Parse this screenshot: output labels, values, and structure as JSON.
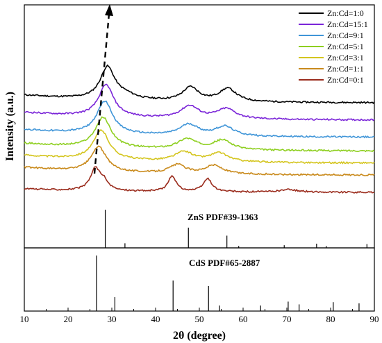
{
  "chart_data": {
    "type": "line",
    "x_label": "2θ (degree)",
    "y_label": "Intensity (a.u.)",
    "x_ticks": [
      10,
      20,
      30,
      40,
      50,
      60,
      70,
      80,
      90
    ],
    "xlim": [
      10,
      90
    ],
    "grid": false,
    "legend_position": "top-right",
    "series": [
      {
        "name": "Zn:Cd=1:0",
        "color": "#000000",
        "offset": 6.0,
        "baseline": 0.45,
        "peaks": [
          [
            29.0,
            1.85,
            2.0
          ],
          [
            48.0,
            0.8,
            2.2
          ],
          [
            56.5,
            0.75,
            2.4
          ],
          [
            33.0,
            0.25,
            3.0
          ]
        ]
      },
      {
        "name": "Zn:Cd=15:1",
        "color": "#7a24d8",
        "offset": 5.0,
        "baseline": 0.45,
        "peaks": [
          [
            28.7,
            1.85,
            2.1
          ],
          [
            47.8,
            0.72,
            2.5
          ],
          [
            56.2,
            0.58,
            2.6
          ]
        ]
      },
      {
        "name": "Zn:Cd=9:1",
        "color": "#3f95d8",
        "offset": 4.0,
        "baseline": 0.45,
        "peaks": [
          [
            28.4,
            1.9,
            2.2
          ],
          [
            47.6,
            0.65,
            2.6
          ],
          [
            55.8,
            0.55,
            2.6
          ]
        ]
      },
      {
        "name": "Zn:Cd=5:1",
        "color": "#8ecf20",
        "offset": 3.2,
        "baseline": 0.45,
        "peaks": [
          [
            28.0,
            1.75,
            2.2
          ],
          [
            47.2,
            0.6,
            2.6
          ],
          [
            55.3,
            0.55,
            2.6
          ]
        ]
      },
      {
        "name": "Zn:Cd=3:1",
        "color": "#d4c51e",
        "offset": 2.5,
        "baseline": 0.45,
        "peaks": [
          [
            27.6,
            1.7,
            2.2
          ],
          [
            46.5,
            0.55,
            2.6
          ],
          [
            54.5,
            0.5,
            2.6
          ]
        ]
      },
      {
        "name": "Zn:Cd=1:1",
        "color": "#c98a1c",
        "offset": 1.8,
        "baseline": 0.45,
        "peaks": [
          [
            27.0,
            1.45,
            2.1
          ],
          [
            45.0,
            0.5,
            2.2
          ],
          [
            53.3,
            0.5,
            2.4
          ]
        ]
      },
      {
        "name": "Zn:Cd=0:1",
        "color": "#9a2b1c",
        "offset": 0.8,
        "baseline": 0.2,
        "peaks": [
          [
            26.2,
            1.25,
            1.3
          ],
          [
            28.1,
            0.5,
            1.2
          ],
          [
            43.8,
            0.9,
            1.1
          ],
          [
            51.9,
            0.75,
            1.2
          ],
          [
            70.5,
            0.15,
            2.5
          ]
        ]
      }
    ],
    "reference_patterns": [
      {
        "label": "ZnS PDF#39-1363",
        "lines": [
          [
            28.5,
            100
          ],
          [
            33.0,
            12
          ],
          [
            47.5,
            53
          ],
          [
            56.3,
            32
          ],
          [
            59.0,
            5
          ],
          [
            69.4,
            7
          ],
          [
            76.8,
            11
          ],
          [
            79.0,
            5
          ],
          [
            88.3,
            10
          ]
        ]
      },
      {
        "label": "CdS PDF#65-2887",
        "lines": [
          [
            26.5,
            100
          ],
          [
            30.7,
            25
          ],
          [
            44.0,
            55
          ],
          [
            52.1,
            45
          ],
          [
            54.6,
            10
          ],
          [
            64.0,
            10
          ],
          [
            70.3,
            17
          ],
          [
            72.8,
            12
          ],
          [
            80.6,
            16
          ],
          [
            86.5,
            14
          ]
        ]
      }
    ]
  }
}
